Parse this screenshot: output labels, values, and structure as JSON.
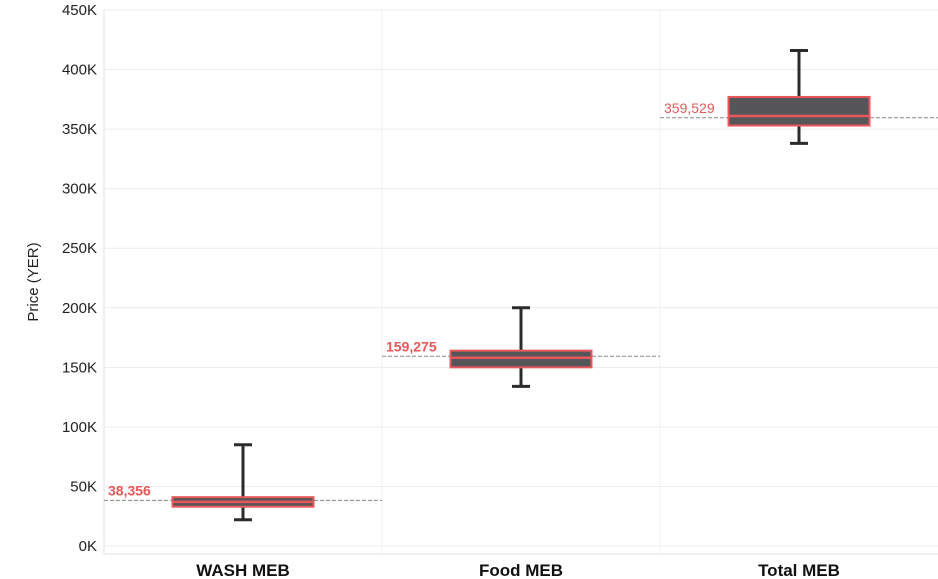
{
  "chart_data": {
    "type": "box",
    "ylabel": "Price (YER)",
    "ylim": [
      0,
      450000
    ],
    "yticks": [
      {
        "value": 0,
        "label": "0K"
      },
      {
        "value": 50000,
        "label": "50K"
      },
      {
        "value": 100000,
        "label": "100K"
      },
      {
        "value": 150000,
        "label": "150K"
      },
      {
        "value": 200000,
        "label": "200K"
      },
      {
        "value": 250000,
        "label": "250K"
      },
      {
        "value": 300000,
        "label": "300K"
      },
      {
        "value": 350000,
        "label": "350K"
      },
      {
        "value": 400000,
        "label": "400K"
      },
      {
        "value": 450000,
        "label": "450K"
      }
    ],
    "grid": true,
    "categories": [
      "WASH MEB",
      "Food MEB",
      "Total MEB"
    ],
    "boxes": [
      {
        "category": "WASH MEB",
        "min": 22000,
        "q1": 33000,
        "median": 37000,
        "q3": 41000,
        "max": 85000,
        "reference": 38356,
        "reference_label": "38,356",
        "reference_bold": true
      },
      {
        "category": "Food MEB",
        "min": 134000,
        "q1": 150000,
        "median": 158000,
        "q3": 164000,
        "max": 200000,
        "reference": 159275,
        "reference_label": "159,275",
        "reference_bold": true
      },
      {
        "category": "Total MEB",
        "min": 338000,
        "q1": 353000,
        "median": 361000,
        "q3": 377000,
        "max": 416000,
        "reference": 359529,
        "reference_label": "359,529",
        "reference_bold": false
      }
    ],
    "colors": {
      "box_fill": "#55555a",
      "box_outline": "#e8585a",
      "whisker": "#2b2b2b",
      "reference_line": "#888888",
      "reference_text": "#e8585a",
      "grid": "#ececec"
    }
  }
}
